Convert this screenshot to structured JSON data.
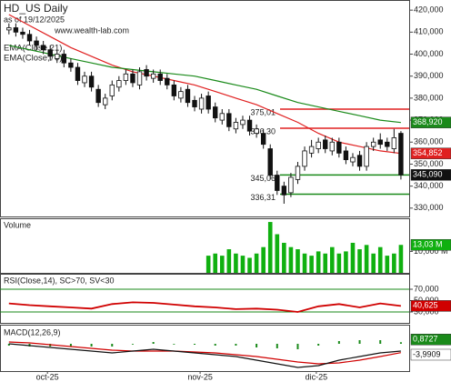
{
  "chart_data": {
    "type": "candlestick",
    "title": "HD_US Daily",
    "subtitle": "as of 19/12/2025",
    "source": "www.wealth-lab.com",
    "xlim": [
      -1.3,
      58.2
    ],
    "xticks": [
      {
        "value": 5.6,
        "label": "oct-25"
      },
      {
        "value": 27.8,
        "label": "nov-25"
      },
      {
        "value": 44.7,
        "label": "dic-25"
      }
    ],
    "ylim": [
      326.2,
      424.2
    ],
    "yticks": [
      {
        "value": 420,
        "label": "420,000"
      },
      {
        "value": 410,
        "label": "410,000"
      },
      {
        "value": 400,
        "label": "400,000"
      },
      {
        "value": 390,
        "label": "390,000"
      },
      {
        "value": 380,
        "label": "380,000"
      },
      {
        "value": 370,
        "label": "370,000"
      },
      {
        "value": 360,
        "label": "360,000"
      },
      {
        "value": 350,
        "label": "350,000"
      },
      {
        "value": 340,
        "label": "340,000"
      },
      {
        "value": 330,
        "label": "330,000"
      }
    ],
    "open": [
      411,
      412,
      410,
      409,
      406,
      404,
      402,
      398,
      400,
      396,
      394,
      387,
      390,
      384,
      377,
      381,
      385,
      388,
      391,
      386,
      393,
      389,
      391,
      389,
      386,
      380,
      384,
      379,
      375,
      381,
      376,
      370,
      373,
      366,
      368,
      370,
      364,
      364,
      357,
      345,
      340,
      337,
      343,
      349,
      355,
      357,
      361,
      356,
      360,
      356,
      351,
      354,
      349,
      358,
      361,
      360,
      357,
      364
    ],
    "high": [
      414,
      414,
      412,
      411,
      408,
      406,
      404,
      402,
      402,
      398,
      396,
      392,
      392,
      386,
      382,
      388,
      390,
      393,
      393,
      394,
      395,
      393,
      393,
      391,
      388,
      385,
      386,
      381,
      382,
      383,
      378,
      375,
      375,
      371,
      372,
      372,
      368,
      366,
      359,
      347,
      342,
      346,
      351,
      358,
      361,
      362,
      363,
      362,
      362,
      358,
      355,
      356,
      360,
      362,
      364,
      362,
      366,
      365
    ],
    "low": [
      409,
      408,
      407,
      404,
      402,
      400,
      397,
      396,
      394,
      392,
      386,
      385,
      383,
      376,
      375,
      379,
      383,
      386,
      385,
      384,
      388,
      387,
      386,
      384,
      379,
      378,
      376,
      374,
      373,
      373,
      369,
      368,
      365,
      364,
      366,
      363,
      362,
      357,
      343,
      336,
      332,
      335,
      341,
      347,
      353,
      355,
      355,
      354,
      353,
      350,
      349,
      347,
      347,
      356,
      357,
      356,
      355,
      343
    ],
    "close": [
      412,
      410,
      409,
      406,
      404,
      402,
      399,
      400,
      396,
      394,
      388,
      390,
      385,
      378,
      380,
      386,
      388,
      391,
      387,
      392,
      390,
      391,
      388,
      386,
      381,
      383,
      378,
      376,
      380,
      375,
      371,
      373,
      367,
      369,
      370,
      365,
      366,
      359,
      345,
      338,
      336,
      344,
      349,
      356,
      358,
      360,
      357,
      360,
      355,
      352,
      353,
      349,
      358,
      360,
      359,
      358,
      362,
      345.09
    ],
    "up_color": "#ffffff",
    "down_color": "#111111",
    "close_label": "345,090",
    "series": [
      {
        "name": "EMA(Close,21)",
        "color": "#e02020",
        "x": [
          0,
          3,
          6,
          9,
          12,
          15,
          18,
          21,
          24,
          27,
          30,
          33,
          36,
          39,
          42,
          45,
          48,
          51,
          54,
          57
        ],
        "values": [
          418,
          413,
          408,
          403,
          399,
          395,
          392,
          390,
          388,
          386,
          383,
          380,
          377,
          373,
          369,
          364,
          360,
          358,
          356,
          354.852
        ],
        "last_label": "354,852"
      },
      {
        "name": "EMA(Close,70)",
        "color": "#1a8a1a",
        "x": [
          0,
          3,
          6,
          9,
          12,
          15,
          18,
          21,
          24,
          27,
          30,
          33,
          36,
          39,
          42,
          45,
          48,
          51,
          54,
          57
        ],
        "values": [
          404,
          402,
          400,
          398,
          396,
          394,
          393,
          392,
          391,
          390,
          388,
          386,
          384,
          381,
          378,
          376,
          374,
          372,
          370,
          368.92
        ],
        "last_label": "368,920"
      }
    ],
    "levels": [
      {
        "value": 375.01,
        "label": "375,01",
        "color": "#e02020"
      },
      {
        "value": 366.3,
        "label": "366,30",
        "color": "#e02020"
      },
      {
        "value": 345.06,
        "label": "345,06",
        "color": "#1a8a1a"
      },
      {
        "value": 336.31,
        "label": "336,31",
        "color": "#1a8a1a"
      }
    ],
    "volume": {
      "title": "Volume",
      "color": "#10b010",
      "ylim": [
        0,
        25
      ],
      "yticks": [
        {
          "value": 10,
          "label": "10,000 M"
        }
      ],
      "last_label": "13,03 M",
      "values": [
        null,
        null,
        null,
        null,
        null,
        null,
        null,
        null,
        null,
        null,
        null,
        null,
        null,
        null,
        null,
        null,
        null,
        null,
        null,
        null,
        null,
        null,
        null,
        null,
        null,
        null,
        null,
        null,
        null,
        8,
        9,
        8,
        11,
        9,
        8,
        7,
        9,
        12,
        23.7,
        18,
        14,
        12,
        11,
        9,
        8,
        10,
        9,
        12,
        9,
        10,
        14,
        11,
        13,
        9,
        12,
        8,
        9,
        13.03
      ]
    },
    "rsi": {
      "title": "RSI(Close,14), SC>70, SV<30",
      "color": "#d00000",
      "ylim": [
        10.8,
        95.6
      ],
      "yticks": [
        {
          "value": 70,
          "label": "70,000"
        },
        {
          "value": 50,
          "label": "50,000"
        },
        {
          "value": 30,
          "label": "30,000"
        }
      ],
      "levels": [
        70,
        30
      ],
      "level_color": "#1a8a1a",
      "x": [
        0,
        3,
        6,
        9,
        12,
        15,
        18,
        21,
        24,
        27,
        30,
        33,
        36,
        39,
        42,
        45,
        48,
        51,
        54,
        57
      ],
      "values": [
        45,
        42,
        40,
        38,
        36,
        44,
        47,
        46,
        43,
        40,
        38,
        35,
        36,
        34,
        30,
        40,
        44,
        38,
        45,
        40.625
      ],
      "last_label": "40,625"
    },
    "macd": {
      "title": "MACD(12,26,9)",
      "ylim": [
        -15,
        10
      ],
      "x": [
        0,
        3,
        6,
        9,
        12,
        15,
        18,
        21,
        24,
        27,
        30,
        33,
        36,
        39,
        42,
        45,
        48,
        51,
        54,
        57
      ],
      "macd": {
        "color": "#111111",
        "values": [
          0,
          -1,
          -2,
          -3,
          -4,
          -5,
          -4,
          -3,
          -4,
          -5,
          -6,
          -7,
          -9,
          -11,
          -13,
          -12,
          -9,
          -7,
          -5,
          -3.9909
        ],
        "last_label": "-3,9909"
      },
      "signal": {
        "color": "#d00000",
        "values": [
          1,
          0.5,
          -0.5,
          -1.5,
          -2.5,
          -3.5,
          -4,
          -4,
          -4,
          -4.5,
          -5,
          -6,
          -7,
          -8.5,
          -10,
          -11,
          -10.5,
          -9,
          -7,
          -4.8636
        ]
      },
      "histogram": {
        "color": "#1a8a1a",
        "values": [
          -1,
          -1.5,
          -1.5,
          -1.5,
          -1.5,
          -1.5,
          0,
          1,
          0,
          -0.5,
          -1,
          -1,
          -2,
          -2.5,
          -3,
          -1,
          1.5,
          2,
          2,
          0.8727
        ],
        "last_label": "0,8727"
      }
    }
  }
}
